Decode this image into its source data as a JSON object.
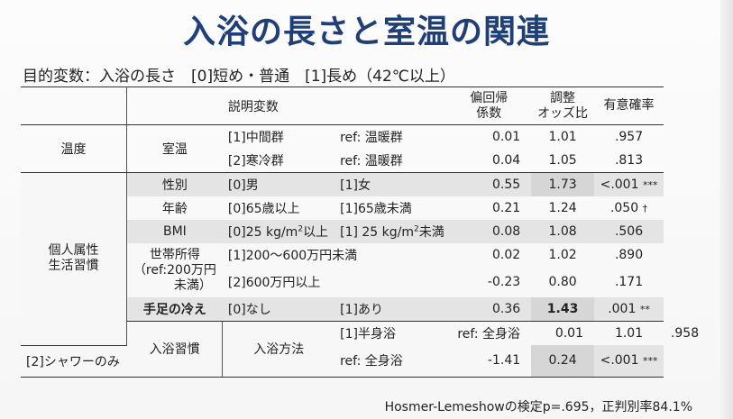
{
  "title": "入浴の長さと室温の関連",
  "subtitle": "目的変数：入浴の長さ　[0]短め・普通　[1]長め（42℃以上）",
  "headers": {
    "variable": "説明変数",
    "coef_line1": "偏回帰",
    "coef_line2": "係数",
    "or_line1": "調整",
    "or_line2": "オッズ比",
    "p": "有意確率"
  },
  "categories": {
    "temp": "温度",
    "personal_line1": "個人属性",
    "personal_line2": "生活習慣",
    "bath": "入浴習慣"
  },
  "variables": {
    "room_temp": "室温",
    "sex": "性別",
    "age": "年齢",
    "bmi": "BMI",
    "income_line1": "世帯所得",
    "income_line2": "（ref:200万円",
    "income_line3": "未満）",
    "cold_limbs": "手足の冷え",
    "bath_method": "入浴方法"
  },
  "rows": [
    {
      "a": "[1]中間群",
      "b": "ref: 温暖群",
      "coef": "0.01",
      "or": "1.01",
      "p": ".957",
      "mark": ""
    },
    {
      "a": "[2]寒冷群",
      "b": "ref: 温暖群",
      "coef": "0.04",
      "or": "1.05",
      "p": ".813",
      "mark": ""
    },
    {
      "a": "[0]男",
      "b": "[1]女",
      "coef": "0.55",
      "or": "1.73",
      "p": "<.001",
      "mark": "***"
    },
    {
      "a": "[0]65歳以上",
      "b": "[1]65歳未満",
      "coef": "0.21",
      "or": "1.24",
      "p": ".050",
      "mark": "†"
    },
    {
      "a": "[0]25 kg/m",
      "a_sup": "2",
      "a_tail": "以上",
      "b": "[1] 25 kg/m",
      "b_sup": "2",
      "b_tail": "未満",
      "coef": "0.08",
      "or": "1.08",
      "p": ".506",
      "mark": ""
    },
    {
      "a": "[1]200～600万円未満",
      "coef": "0.02",
      "or": "1.02",
      "p": ".890",
      "mark": ""
    },
    {
      "a": "[2]600万円以上",
      "coef": "-0.23",
      "or": "0.80",
      "p": ".171",
      "mark": ""
    },
    {
      "a": "[0]なし",
      "b": "[1]あり",
      "coef": "0.36",
      "or": "1.43",
      "p": ".001",
      "mark": "**"
    },
    {
      "a": "[1]半身浴",
      "b": "ref: 全身浴",
      "coef": "0.01",
      "or": "1.01",
      "p": ".958",
      "mark": ""
    },
    {
      "a": "[2]シャワーのみ",
      "b": "ref: 全身浴",
      "coef": "-1.41",
      "or": "0.24",
      "p": "<.001",
      "mark": "***"
    }
  ],
  "footer": "Hosmer-Lemeshowの検定p=.695，正判別率84.1%"
}
